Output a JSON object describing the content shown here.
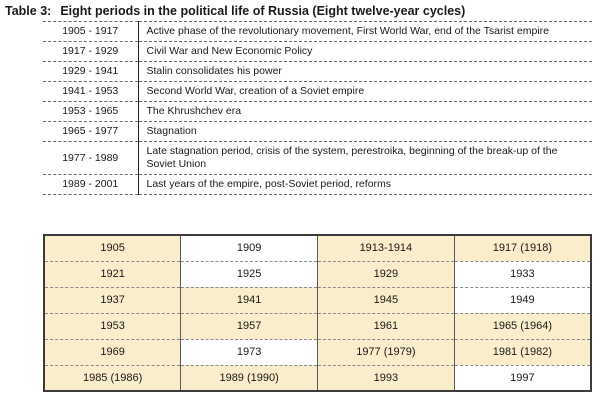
{
  "page": {
    "title_label": "Table 3:",
    "title_text": "Eight periods in the political life of Russia (Eight twelve-year cycles)"
  },
  "periods_table": {
    "rows": [
      {
        "range": "1905 - 1917",
        "description": "Active phase of the revolutionary movement, First World War, end of the Tsarist empire"
      },
      {
        "range": "1917 - 1929",
        "description": "Civil War and New Economic Policy"
      },
      {
        "range": "1929 - 1941",
        "description": "Stalin consolidates his power"
      },
      {
        "range": "1941 - 1953",
        "description": "Second World War, creation of a Soviet empire"
      },
      {
        "range": "1953 - 1965",
        "description": "The Khrushchev era"
      },
      {
        "range": "1965 - 1977",
        "description": "Stagnation"
      },
      {
        "range": "1977 - 1989",
        "description": "Late stagnation period, crisis of the system, perestroika, beginning of the break-up of the Soviet Union"
      },
      {
        "range": "1989 - 2001",
        "description": "Last years of the empire, post-Soviet period, reforms"
      }
    ]
  },
  "cycles_table": {
    "highlight_color": "#faedcb",
    "rows": [
      {
        "cells": [
          {
            "text": "1905",
            "highlighted": true
          },
          {
            "text": "1909",
            "highlighted": false
          },
          {
            "text": "1913-1914",
            "highlighted": true
          },
          {
            "text": "1917 (1918)",
            "highlighted": true
          }
        ]
      },
      {
        "cells": [
          {
            "text": "1921",
            "highlighted": true
          },
          {
            "text": "1925",
            "highlighted": false
          },
          {
            "text": "1929",
            "highlighted": true
          },
          {
            "text": "1933",
            "highlighted": false
          }
        ]
      },
      {
        "cells": [
          {
            "text": "1937",
            "highlighted": true
          },
          {
            "text": "1941",
            "highlighted": true
          },
          {
            "text": "1945",
            "highlighted": true
          },
          {
            "text": "1949",
            "highlighted": false
          }
        ]
      },
      {
        "cells": [
          {
            "text": "1953",
            "highlighted": true
          },
          {
            "text": "1957",
            "highlighted": true
          },
          {
            "text": "1961",
            "highlighted": true
          },
          {
            "text": "1965 (1964)",
            "highlighted": true
          }
        ]
      },
      {
        "cells": [
          {
            "text": "1969",
            "highlighted": true
          },
          {
            "text": "1973",
            "highlighted": false
          },
          {
            "text": "1977 (1979)",
            "highlighted": true
          },
          {
            "text": "1981 (1982)",
            "highlighted": true
          }
        ]
      },
      {
        "cells": [
          {
            "text": "1985 (1986)",
            "highlighted": true
          },
          {
            "text": "1989 (1990)",
            "highlighted": true
          },
          {
            "text": "1993",
            "highlighted": true
          },
          {
            "text": "1997",
            "highlighted": false
          }
        ]
      }
    ]
  }
}
